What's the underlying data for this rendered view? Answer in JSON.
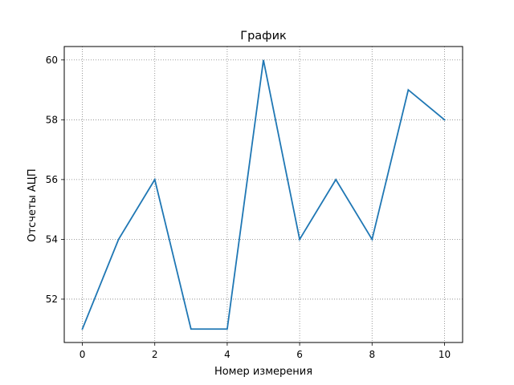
{
  "chart_data": {
    "type": "line",
    "title": "График",
    "xlabel": "Номер измерения",
    "ylabel": "Отсчеты АЦП",
    "x": [
      0,
      1,
      2,
      3,
      4,
      5,
      6,
      7,
      8,
      9,
      10
    ],
    "series": [
      {
        "values": [
          51,
          54,
          56,
          51,
          51,
          60,
          54,
          56,
          54,
          59,
          58
        ],
        "color": "#1f77b4"
      }
    ],
    "xlim": [
      -0.5,
      10.5
    ],
    "ylim": [
      50.55,
      60.45
    ],
    "xticks": [
      0,
      2,
      4,
      6,
      8,
      10
    ],
    "yticks": [
      52,
      54,
      56,
      58,
      60
    ],
    "xtick_labels": [
      "0",
      "2",
      "4",
      "6",
      "8",
      "10"
    ],
    "ytick_labels": [
      "52",
      "54",
      "56",
      "58",
      "60"
    ],
    "grid": true,
    "grid_style": "dotted",
    "grid_color": "#808080",
    "legend": false
  }
}
